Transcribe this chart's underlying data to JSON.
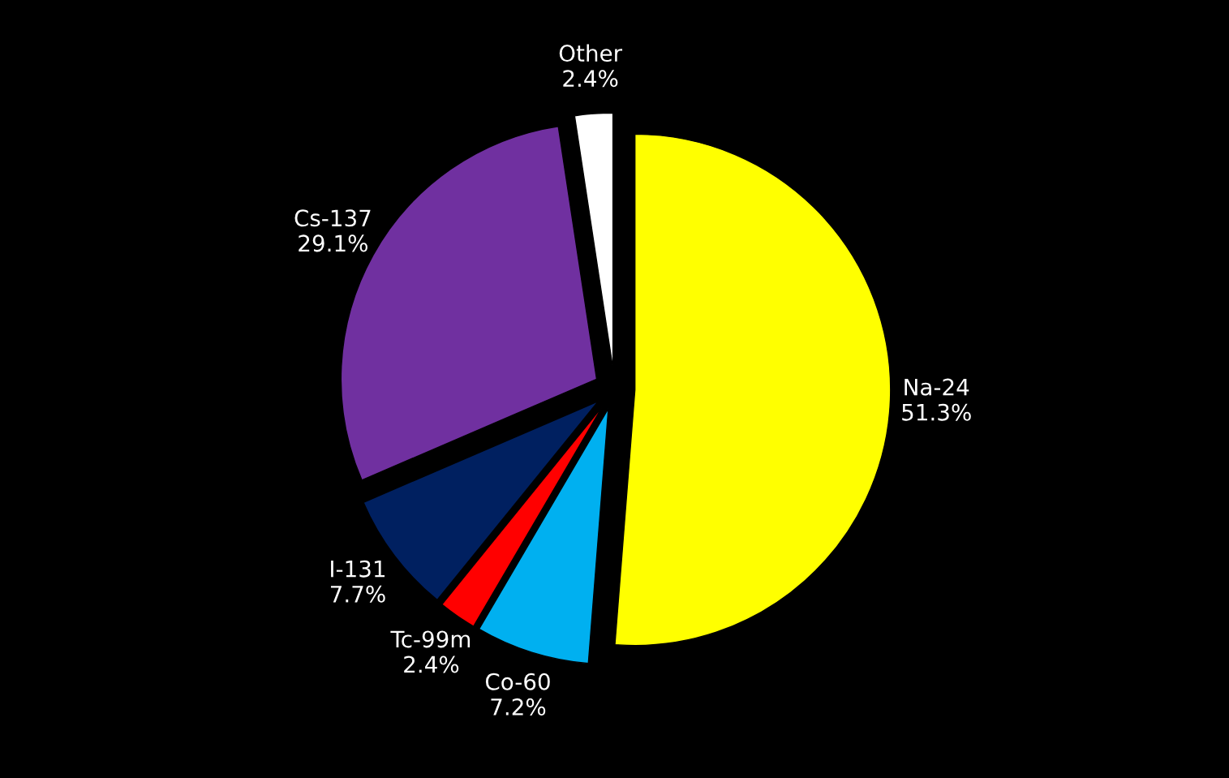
{
  "chart_data": {
    "type": "pie",
    "categories": [
      "Na-24",
      "Co-60",
      "Tc-99m",
      "I-131",
      "Cs-137",
      "Other"
    ],
    "values": [
      51.3,
      7.2,
      2.4,
      7.7,
      29.1,
      2.4
    ],
    "colors": [
      "#ffff00",
      "#00b0f0",
      "#ff0000",
      "#002060",
      "#7030a0",
      "#ffffff"
    ],
    "value_labels": [
      "51.3%",
      "7.2%",
      "2.4%",
      "7.7%",
      "29.1%",
      "2.4%"
    ]
  }
}
